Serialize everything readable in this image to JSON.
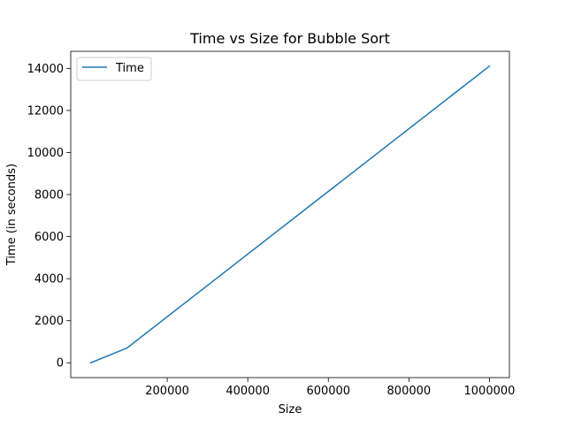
{
  "chart_data": {
    "type": "line",
    "title": "Time vs Size for Bubble Sort",
    "xlabel": "Size",
    "ylabel": "Time (in seconds)",
    "xlim": [
      -39500,
      1049500
    ],
    "ylim": [
      -705,
      14815
    ],
    "xticks": [
      200000,
      400000,
      600000,
      800000,
      1000000
    ],
    "xtick_labels": [
      "200000",
      "400000",
      "600000",
      "800000",
      "1000000"
    ],
    "yticks": [
      0,
      2000,
      4000,
      6000,
      8000,
      10000,
      12000,
      14000
    ],
    "ytick_labels": [
      "0",
      "2000",
      "4000",
      "6000",
      "8000",
      "10000",
      "12000",
      "14000"
    ],
    "grid": false,
    "legend_position": "upper left",
    "series": [
      {
        "name": "Time",
        "color": "#1f77b4",
        "x": [
          10000,
          100000,
          1000000
        ],
        "y": [
          0,
          700,
          14110
        ]
      }
    ]
  }
}
